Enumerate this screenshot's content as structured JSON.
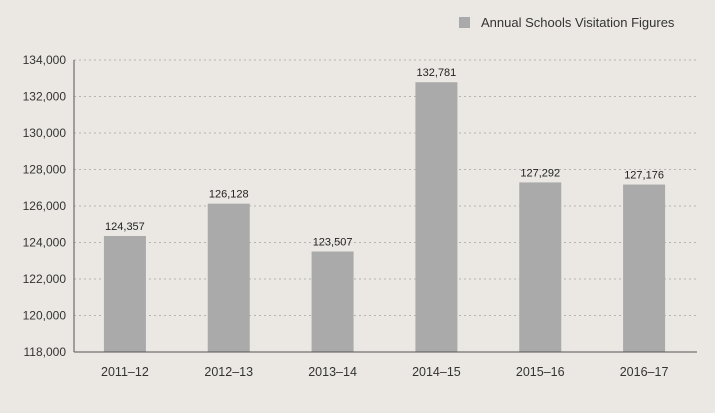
{
  "chart_data": {
    "type": "bar",
    "title": "",
    "xlabel": "",
    "ylabel": "",
    "categories": [
      "2011–12",
      "2012–13",
      "2013–14",
      "2014–15",
      "2015–16",
      "2016–17"
    ],
    "series": [
      {
        "name": "Annual Schools Visitation Figures",
        "values": [
          124357,
          126128,
          123507,
          132781,
          127292,
          127176
        ],
        "labels": [
          "124,357",
          "126,128",
          "123,507",
          "132,781",
          "127,292",
          "127,176"
        ],
        "color": "#aaaaaa"
      }
    ],
    "ylim": [
      118000,
      134000
    ],
    "yticks": [
      118000,
      120000,
      122000,
      124000,
      126000,
      128000,
      130000,
      132000,
      134000
    ],
    "ytick_labels": [
      "118,000",
      "120,000",
      "122,000",
      "124,000",
      "126,000",
      "128,000",
      "130,000",
      "132,000",
      "134,000"
    ],
    "grid": true,
    "legend_position": "top-right"
  },
  "colors": {
    "background": "#ebe8e3",
    "bar": "#aaaaaa",
    "grid": "#b5b3af",
    "axis": "#555555",
    "text": "#333333"
  }
}
